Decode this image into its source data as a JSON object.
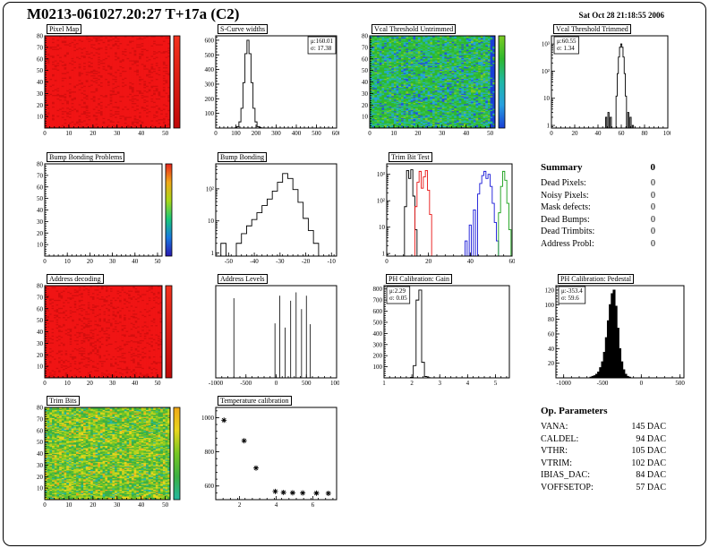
{
  "page": {
    "title": "M0213-061027.20:27 T+17a (C2)",
    "timestamp": "Sat Oct 28 21:18:55 2006"
  },
  "summary": {
    "title": "Summary",
    "total": "0",
    "rows": [
      {
        "label": "Dead Pixels:",
        "value": "0"
      },
      {
        "label": "Noisy Pixels:",
        "value": "0"
      },
      {
        "label": "Mask defects:",
        "value": "0"
      },
      {
        "label": "Dead Bumps:",
        "value": "0"
      },
      {
        "label": "Dead Trimbits:",
        "value": "0"
      },
      {
        "label": "Address Probl:",
        "value": "0"
      }
    ]
  },
  "op_parameters": {
    "title": "Op. Parameters",
    "rows": [
      {
        "label": "VANA:",
        "value": "145 DAC"
      },
      {
        "label": "CALDEL:",
        "value": "94 DAC"
      },
      {
        "label": "VTHR:",
        "value": "105 DAC"
      },
      {
        "label": "VTRIM:",
        "value": "102 DAC"
      },
      {
        "label": "IBIAS_DAC:",
        "value": "84 DAC"
      },
      {
        "label": "VOFFSETOP:",
        "value": "57 DAC"
      }
    ]
  },
  "chart_data": [
    {
      "id": "pixel-map",
      "type": "heatmap",
      "title": "Pixel Map",
      "style": "solid",
      "base_color": "#f01414",
      "alt_color": "#d40e0e",
      "seed": 7,
      "xlim": [
        0,
        52
      ],
      "ylim": [
        0,
        80
      ],
      "xticks": [
        0,
        10,
        20,
        30,
        40,
        50
      ],
      "yticks": [
        10,
        20,
        30,
        40,
        50,
        60,
        70,
        80
      ],
      "colorbar": [
        "#f3321e",
        "#c00808"
      ]
    },
    {
      "id": "scurve-widths",
      "type": "hist",
      "title": "S-Curve widths",
      "style": "step",
      "bin_width": 10,
      "bins": [
        [
          100,
          2
        ],
        [
          110,
          10
        ],
        [
          120,
          42
        ],
        [
          130,
          135
        ],
        [
          140,
          310
        ],
        [
          150,
          508
        ],
        [
          160,
          600
        ],
        [
          170,
          508
        ],
        [
          180,
          310
        ],
        [
          190,
          135
        ],
        [
          200,
          42
        ],
        [
          210,
          10
        ],
        [
          220,
          3
        ],
        [
          230,
          1
        ]
      ],
      "xlim": [
        0,
        600
      ],
      "ylim": [
        0,
        630
      ],
      "xticks": [
        0,
        100,
        200,
        300,
        400,
        500,
        600
      ],
      "yticks": [
        100,
        200,
        300,
        400,
        500,
        600
      ],
      "stats": {
        "lines": [
          "μ:160.01",
          "σ: 17.38"
        ],
        "pos": "right"
      }
    },
    {
      "id": "vcal-untrimmed",
      "type": "heatmap",
      "title": "Vcal Threshold Untrimmed",
      "style": "noise",
      "seed": 11,
      "palette": [
        {
          "c": "#2eb82e",
          "w": 0.38
        },
        {
          "c": "#35c24f",
          "w": 0.2
        },
        {
          "c": "#1fb8a6",
          "w": 0.15
        },
        {
          "c": "#27a0e0",
          "w": 0.12
        },
        {
          "c": "#2255dd",
          "w": 0.08
        },
        {
          "c": "#7ccc22",
          "w": 0.07
        }
      ],
      "right_cols": {
        "n": 2,
        "color": "#1a3fd6"
      },
      "xlim": [
        0,
        52
      ],
      "ylim": [
        0,
        80
      ],
      "xticks": [
        0,
        10,
        20,
        30,
        40,
        50
      ],
      "yticks": [
        10,
        20,
        30,
        40,
        50,
        60,
        70,
        80
      ],
      "colorbar": [
        "#7ccc22",
        "#2eb82e",
        "#1fb8a6",
        "#27a0e0",
        "#1a3fd6"
      ]
    },
    {
      "id": "vcal-trimmed",
      "type": "hist",
      "title": "Vcal Threshold Trimmed",
      "style": "step",
      "bin_width": 1,
      "ylog": true,
      "bins": [
        [
          47,
          2
        ],
        [
          49,
          3
        ],
        [
          51,
          2
        ],
        [
          56,
          12
        ],
        [
          57,
          81
        ],
        [
          58,
          330
        ],
        [
          59,
          760
        ],
        [
          60,
          1000
        ],
        [
          61,
          760
        ],
        [
          62,
          330
        ],
        [
          63,
          81
        ],
        [
          64,
          12
        ],
        [
          66,
          3
        ],
        [
          68,
          2
        ],
        [
          70,
          1
        ]
      ],
      "xlim": [
        0,
        100
      ],
      "ylim": [
        0.8,
        2000
      ],
      "xticks": [
        0,
        20,
        40,
        60,
        80,
        100
      ],
      "yticks": [
        1,
        10,
        100,
        1000
      ],
      "stats": {
        "lines": [
          "μ:60.55",
          "σ: 1.34"
        ],
        "pos": "left"
      }
    },
    {
      "id": "bump-problems",
      "type": "heatmap",
      "title": "Bump Bonding Problems",
      "style": "empty",
      "xlim": [
        0,
        52
      ],
      "ylim": [
        0,
        80
      ],
      "xticks": [
        0,
        10,
        20,
        30,
        40,
        50
      ],
      "yticks": [
        10,
        20,
        30,
        40,
        50,
        60,
        70,
        80
      ],
      "colorbar": [
        "#e8251c",
        "#f0a818",
        "#a8d818",
        "#18c87a",
        "#1878e0",
        "#2818b0"
      ]
    },
    {
      "id": "bump-bonding",
      "type": "hist",
      "title": "Bump Bonding",
      "style": "step",
      "bin_width": 2,
      "ylog": true,
      "bins": [
        [
          -52,
          2
        ],
        [
          -46,
          2
        ],
        [
          -44,
          4
        ],
        [
          -42,
          7
        ],
        [
          -40,
          11
        ],
        [
          -38,
          18
        ],
        [
          -36,
          30
        ],
        [
          -34,
          48
        ],
        [
          -32,
          85
        ],
        [
          -30,
          160
        ],
        [
          -28,
          300
        ],
        [
          -26,
          210
        ],
        [
          -24,
          95
        ],
        [
          -22,
          38
        ],
        [
          -20,
          12
        ],
        [
          -18,
          5
        ],
        [
          -16,
          2
        ]
      ],
      "xlim": [
        -55,
        -8
      ],
      "ylim": [
        0.8,
        600
      ],
      "xticks": [
        -50,
        -40,
        -30,
        -20,
        -10
      ],
      "yticks": [
        1,
        10,
        100
      ]
    },
    {
      "id": "trimbit-test",
      "type": "multihist",
      "title": "Trim Bit Test",
      "bin_width": 1,
      "ylog": true,
      "series": [
        {
          "name": "black",
          "color": "#000000",
          "bins": [
            [
              9,
              60
            ],
            [
              10,
              1400
            ],
            [
              11,
              700
            ],
            [
              12,
              1500
            ],
            [
              13,
              150
            ],
            [
              14,
              8
            ]
          ]
        },
        {
          "name": "red",
          "color": "#e81414",
          "bins": [
            [
              14,
              60
            ],
            [
              15,
              500
            ],
            [
              16,
              1300
            ],
            [
              17,
              300
            ],
            [
              18,
              800
            ],
            [
              19,
              1400
            ],
            [
              20,
              250
            ],
            [
              21,
              30
            ]
          ]
        },
        {
          "name": "blue",
          "color": "#1818d8",
          "bins": [
            [
              38,
              3
            ],
            [
              40,
              12
            ],
            [
              42,
              45
            ],
            [
              44,
              180
            ],
            [
              45,
              450
            ],
            [
              46,
              900
            ],
            [
              47,
              1300
            ],
            [
              48,
              700
            ],
            [
              49,
              1000
            ],
            [
              50,
              350
            ],
            [
              51,
              80
            ],
            [
              52,
              15
            ],
            [
              53,
              3
            ]
          ]
        },
        {
          "name": "green",
          "color": "#18a018",
          "bins": [
            [
              54,
              35
            ],
            [
              55,
              350
            ],
            [
              56,
              1300
            ],
            [
              57,
              600
            ],
            [
              58,
              80
            ],
            [
              59,
              8
            ]
          ]
        }
      ],
      "xlim": [
        0,
        60
      ],
      "ylim": [
        0.8,
        2500
      ],
      "xticks": [
        0,
        20,
        40,
        60
      ],
      "yticks": [
        1,
        10,
        100,
        1000
      ]
    },
    {
      "id": "address-decoding",
      "type": "heatmap",
      "title": "Address decoding",
      "style": "solid",
      "base_color": "#f01414",
      "alt_color": "#d40e0e",
      "seed": 23,
      "xlim": [
        0,
        52
      ],
      "ylim": [
        0,
        80
      ],
      "xticks": [
        0,
        10,
        20,
        30,
        40,
        50
      ],
      "yticks": [
        10,
        20,
        30,
        40,
        50,
        60,
        70,
        80
      ],
      "colorbar": [
        "#f3321e",
        "#c00808"
      ]
    },
    {
      "id": "address-levels",
      "type": "spikes",
      "title": "Address Levels",
      "points": [
        [
          -700,
          950
        ],
        [
          -20,
          650
        ],
        [
          60,
          980
        ],
        [
          150,
          600
        ],
        [
          240,
          920
        ],
        [
          330,
          1020
        ],
        [
          420,
          820
        ],
        [
          500,
          980
        ],
        [
          565,
          640
        ]
      ],
      "xlim": [
        -1000,
        1000
      ],
      "ylim": [
        0,
        1100
      ],
      "xticks": [
        -1000,
        -500,
        0,
        500,
        1000
      ],
      "yticks": []
    },
    {
      "id": "ph-gain",
      "type": "hist",
      "title": "PH Calibration: Gain",
      "style": "step",
      "bin_width": 0.1,
      "bins": [
        [
          2.0,
          4
        ],
        [
          2.1,
          110
        ],
        [
          2.2,
          700
        ],
        [
          2.3,
          790
        ],
        [
          2.4,
          140
        ],
        [
          2.5,
          12
        ],
        [
          2.6,
          2
        ]
      ],
      "xlim": [
        1,
        5.5
      ],
      "ylim": [
        0,
        830
      ],
      "xticks": [
        1,
        2,
        3,
        4,
        5
      ],
      "yticks": [
        100,
        200,
        300,
        400,
        500,
        600,
        700,
        800
      ],
      "stats": {
        "lines": [
          "μ:2.29",
          "σ: 0.05"
        ],
        "pos": "left"
      }
    },
    {
      "id": "ph-pedestal",
      "type": "hist",
      "title": "PH Calibration: Pedestal",
      "style": "fill",
      "color": "#000000",
      "bin_width": 25,
      "bins": [
        [
          -650,
          1
        ],
        [
          -625,
          2
        ],
        [
          -600,
          3
        ],
        [
          -575,
          5
        ],
        [
          -550,
          8
        ],
        [
          -525,
          14
        ],
        [
          -500,
          22
        ],
        [
          -475,
          35
        ],
        [
          -450,
          55
        ],
        [
          -425,
          78
        ],
        [
          -400,
          100
        ],
        [
          -375,
          115
        ],
        [
          -350,
          120
        ],
        [
          -325,
          98
        ],
        [
          -300,
          68
        ],
        [
          -275,
          40
        ],
        [
          -250,
          22
        ],
        [
          -225,
          11
        ],
        [
          -200,
          5
        ],
        [
          -175,
          2
        ],
        [
          -150,
          1
        ]
      ],
      "xlim": [
        -1100,
        550
      ],
      "ylim": [
        0,
        126
      ],
      "xticks": [
        -1000,
        -500,
        0,
        500
      ],
      "yticks": [
        20,
        40,
        60,
        80,
        100,
        120
      ],
      "stats": {
        "lines": [
          "μ:-353.4",
          "σ: 59.6"
        ],
        "pos": "left"
      }
    },
    {
      "id": "trim-bits",
      "type": "heatmap",
      "title": "Trim Bits",
      "style": "noise",
      "seed": 31,
      "palette": [
        {
          "c": "#3cb043",
          "w": 0.3
        },
        {
          "c": "#76c724",
          "w": 0.25
        },
        {
          "c": "#b6d41f",
          "w": 0.2
        },
        {
          "c": "#e8d51c",
          "w": 0.13
        },
        {
          "c": "#f0a818",
          "w": 0.05
        },
        {
          "c": "#25b7a2",
          "w": 0.07
        }
      ],
      "xlim": [
        0,
        52
      ],
      "ylim": [
        0,
        80
      ],
      "xticks": [
        0,
        10,
        20,
        30,
        40,
        50
      ],
      "yticks": [
        10,
        20,
        30,
        40,
        50,
        60,
        70,
        80
      ],
      "colorbar": [
        "#f0a818",
        "#e8d51c",
        "#76c724",
        "#3cb043",
        "#25b7a2"
      ]
    },
    {
      "id": "temp-cal",
      "type": "scatter",
      "title": "Temperature calibration",
      "marker": "star",
      "points": [
        [
          1.15,
          985
        ],
        [
          2.25,
          865
        ],
        [
          2.9,
          705
        ],
        [
          3.95,
          568
        ],
        [
          4.4,
          562
        ],
        [
          4.9,
          560
        ],
        [
          5.45,
          559
        ],
        [
          6.2,
          558
        ],
        [
          6.85,
          557
        ]
      ],
      "xlim": [
        0.7,
        7.3
      ],
      "ylim": [
        520,
        1060
      ],
      "xticks": [
        2,
        4,
        6
      ],
      "yticks": [
        600,
        800,
        1000
      ]
    }
  ]
}
